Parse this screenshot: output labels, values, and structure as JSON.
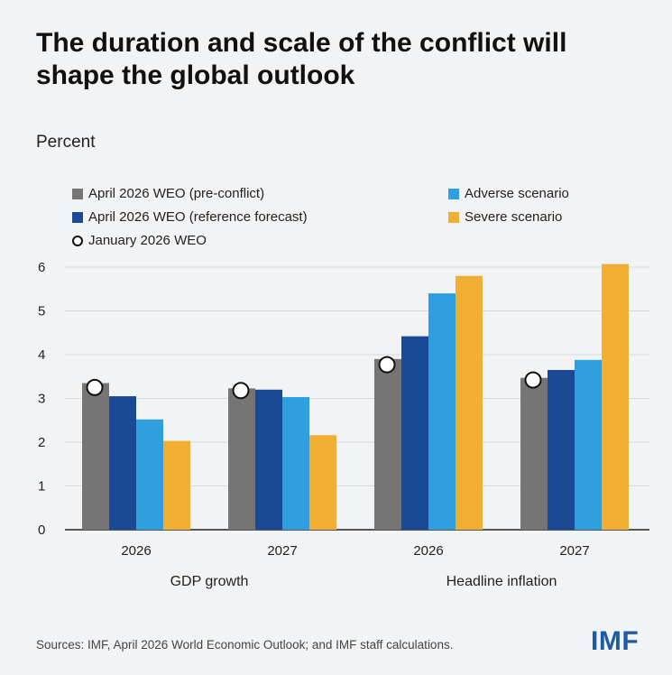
{
  "title": "The duration and scale of the conflict will shape the global outlook",
  "source": "Sources: IMF, April 2026 World Economic Outlook; and IMF staff calculations.",
  "logo_text": "IMF",
  "colors": {
    "pre_conflict": "#757575",
    "reference": "#1a4a94",
    "adverse": "#2ea0e0",
    "severe": "#f0ae32",
    "marker_border": "#111111",
    "marker_fill": "#ffffff"
  },
  "chart_data": {
    "type": "bar",
    "title": "The duration and scale of the conflict will shape the global outlook",
    "ylabel": "Percent",
    "xlabel": "",
    "ylim": [
      0,
      6
    ],
    "yticks": [
      0,
      1,
      2,
      3,
      4,
      5,
      6
    ],
    "grid": true,
    "legend_position": "top",
    "groups": [
      {
        "label": "GDP growth",
        "categories": [
          "2026",
          "2027"
        ]
      },
      {
        "label": "Headline inflation",
        "categories": [
          "2026",
          "2027"
        ]
      }
    ],
    "categories": [
      "2026",
      "2027",
      "2026",
      "2027"
    ],
    "series": [
      {
        "name": "April 2026 WEO (pre-conflict)",
        "values": [
          3.35,
          3.23,
          3.9,
          3.47
        ]
      },
      {
        "name": "April 2026 WEO (reference forecast)",
        "values": [
          3.05,
          3.2,
          4.42,
          3.65
        ]
      },
      {
        "name": "Adverse scenario",
        "values": [
          2.52,
          3.03,
          5.4,
          3.88
        ]
      },
      {
        "name": "Severe scenario",
        "values": [
          2.03,
          2.16,
          5.8,
          6.07
        ]
      }
    ],
    "markers": {
      "name": "January 2026 WEO",
      "values": [
        3.25,
        3.18,
        3.77,
        3.42
      ]
    }
  }
}
